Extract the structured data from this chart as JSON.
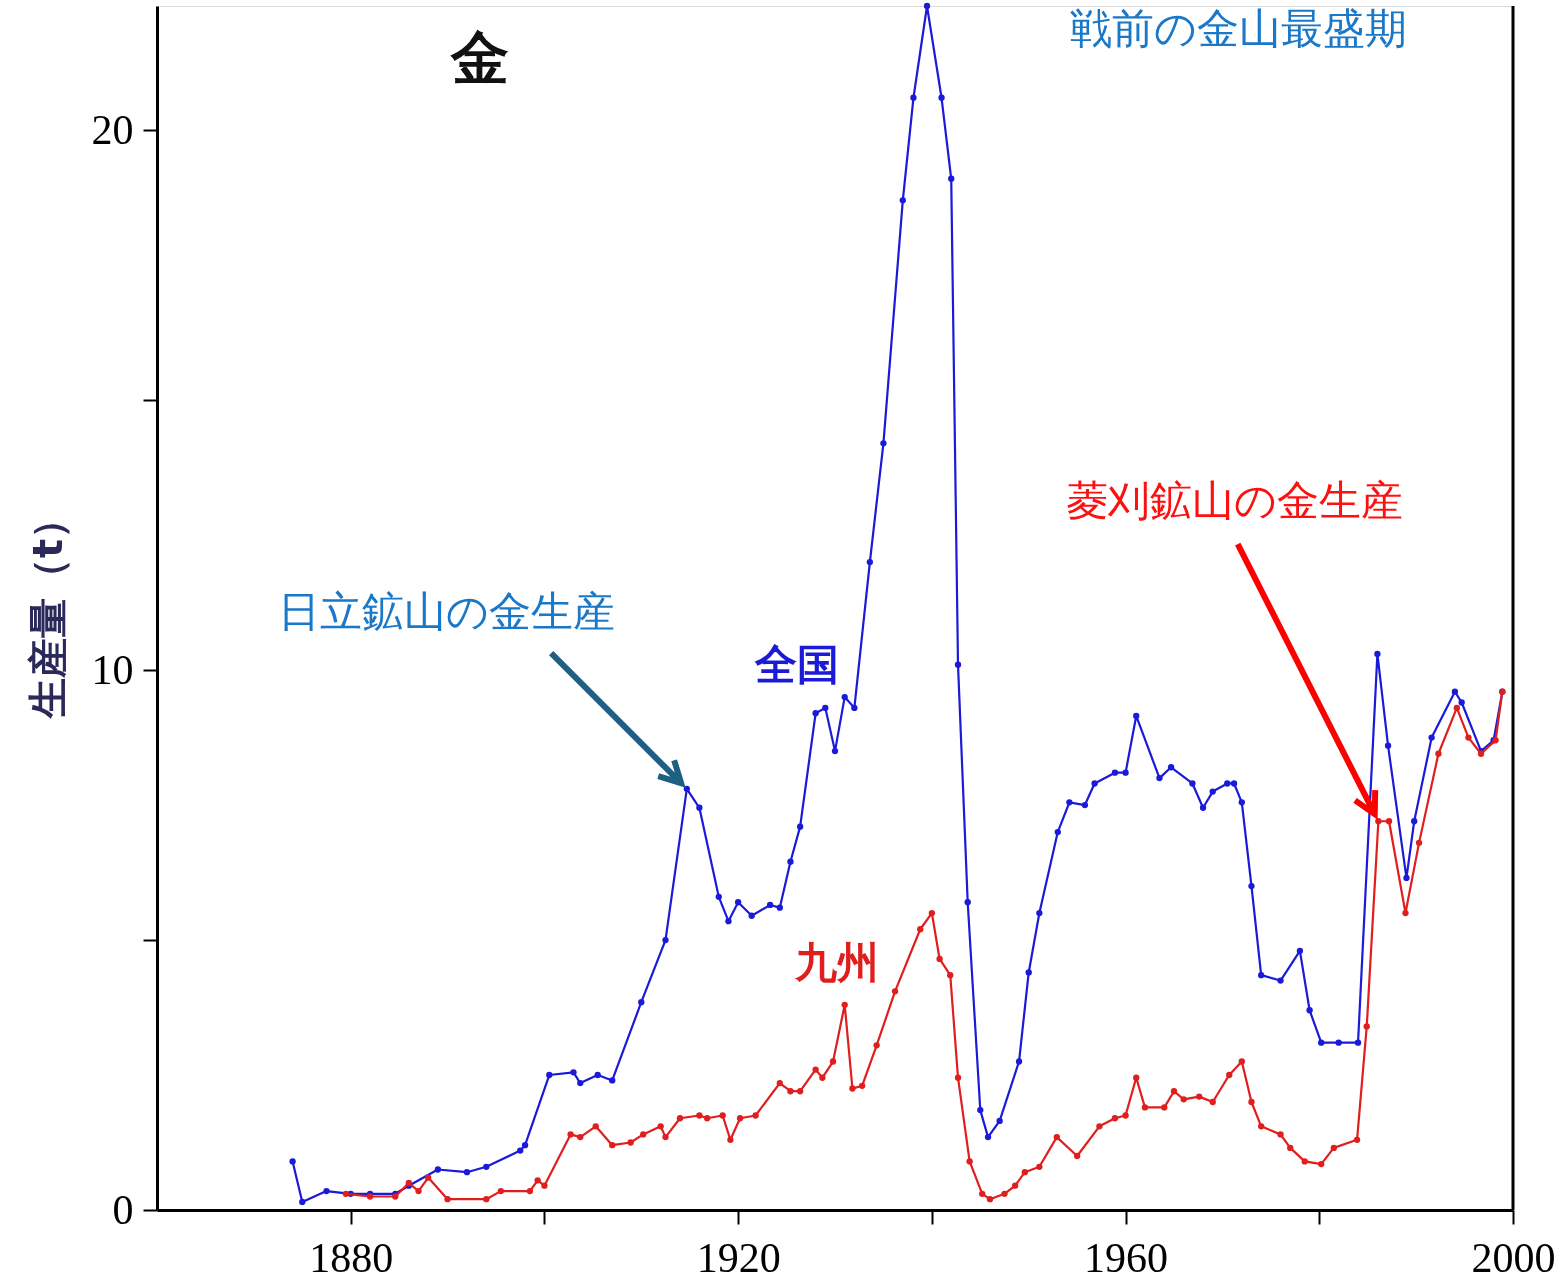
{
  "chart_data": {
    "type": "line",
    "title": "金",
    "ylabel": "生産量（t）",
    "xlim": [
      1860,
      2000
    ],
    "xticks": [
      1880,
      {
        "value": 1900,
        "label": null
      },
      1920,
      {
        "value": 1940,
        "label": null
      },
      1960,
      {
        "value": 1980,
        "label": null
      },
      2000
    ],
    "ylim": [
      0,
      22.3
    ],
    "yticks": [
      0,
      {
        "value": 5,
        "label": null
      },
      10,
      {
        "value": 15,
        "label": null
      },
      20
    ],
    "grid": false,
    "marker": "circle",
    "line_style": "solid",
    "annotations": [
      "戦前の金山最盛期",
      {
        "text": "日立鉱山の金生産",
        "x": 1914.7,
        "y": 7.8
      },
      {
        "text": "菱刈鉱山の金生産",
        "x": 1986.1,
        "y": 7.2
      }
    ],
    "series": [
      {
        "name": "全国",
        "color": "#1a1ad8",
        "x": [
          1874,
          1875,
          1877.5,
          1880,
          1882,
          1884.6,
          1886,
          1889,
          1892,
          1894,
          1897.5,
          1898,
          1900.5,
          1903,
          1903.7,
          1905.5,
          1907,
          1910,
          1912.5,
          1914.7,
          1916,
          1918,
          1919,
          1920,
          1921.4,
          1923.3,
          1924.3,
          1925.4,
          1926.4,
          1928,
          1929,
          1930,
          1931,
          1932,
          1933.6,
          1935,
          1937,
          1938.1,
          1939.5,
          1941,
          1942,
          1942.7,
          1943.7,
          1945,
          1945.8,
          1947,
          1949,
          1950,
          1951.1,
          1953,
          1954.2,
          1955.8,
          1956.8,
          1958.9,
          1960,
          1961.1,
          1963.5,
          1964.7,
          1966.9,
          1968,
          1969,
          1970.5,
          1971.2,
          1972,
          1973,
          1974,
          1976,
          1978,
          1979,
          1980.2,
          1982,
          1984,
          1986,
          1987.1,
          1989,
          1989.8,
          1991.6,
          1994,
          1994.7,
          1996.7,
          1998,
          1998.9
        ],
        "values": [
          0.9,
          0.15,
          0.35,
          0.3,
          0.3,
          0.3,
          0.45,
          0.75,
          0.7,
          0.8,
          1.1,
          1.2,
          2.5,
          2.55,
          2.35,
          2.5,
          2.4,
          3.85,
          5.0,
          7.8,
          7.45,
          5.8,
          5.35,
          5.7,
          5.45,
          5.65,
          5.6,
          6.45,
          7.1,
          9.2,
          9.3,
          8.5,
          9.5,
          9.3,
          12.0,
          14.2,
          18.7,
          20.6,
          22.3,
          20.6,
          19.1,
          10.1,
          5.7,
          1.85,
          1.35,
          1.65,
          2.75,
          4.4,
          5.5,
          7.0,
          7.55,
          7.5,
          7.9,
          8.1,
          8.1,
          9.15,
          8.0,
          8.2,
          7.9,
          7.45,
          7.75,
          7.9,
          7.9,
          7.55,
          6.0,
          4.35,
          4.25,
          4.8,
          3.7,
          3.1,
          3.1,
          3.1,
          10.3,
          8.6,
          6.15,
          7.2,
          8.75,
          9.6,
          9.4,
          8.5,
          8.7,
          9.6
        ]
      },
      {
        "name": "九州",
        "color": "#e01e1e",
        "x": [
          1879.5,
          1882,
          1884.6,
          1886,
          1887,
          1888,
          1890,
          1894,
          1895.5,
          1898.5,
          1899.3,
          1900,
          1902.7,
          1903.7,
          1905.3,
          1907,
          1908.9,
          1910.2,
          1912,
          1912.5,
          1914,
          1916,
          1916.8,
          1918.4,
          1919.2,
          1920.2,
          1921.8,
          1924.3,
          1925.4,
          1926.4,
          1928,
          1928.7,
          1929.8,
          1931,
          1931.8,
          1932.8,
          1934.3,
          1936.2,
          1938.8,
          1940,
          1940.8,
          1941.9,
          1942.7,
          1943.9,
          1945.2,
          1946,
          1947.5,
          1948.6,
          1949.6,
          1951.1,
          1952.9,
          1955,
          1957.3,
          1958.9,
          1960,
          1961.1,
          1962,
          1964,
          1965,
          1966,
          1967.6,
          1969,
          1970.7,
          1972,
          1973,
          1974,
          1976,
          1977,
          1978.5,
          1980.2,
          1981.5,
          1983.9,
          1984.9,
          1986.1,
          1987.2,
          1988.9,
          1990.3,
          1992.3,
          1994.2,
          1995.4,
          1996.7,
          1998.2,
          1998.9
        ],
        "values": [
          0.3,
          0.25,
          0.25,
          0.5,
          0.35,
          0.6,
          0.2,
          0.2,
          0.35,
          0.35,
          0.55,
          0.45,
          1.4,
          1.35,
          1.55,
          1.2,
          1.25,
          1.4,
          1.55,
          1.35,
          1.7,
          1.75,
          1.7,
          1.75,
          1.3,
          1.7,
          1.75,
          2.35,
          2.2,
          2.2,
          2.6,
          2.45,
          2.75,
          3.8,
          2.25,
          2.3,
          3.05,
          4.05,
          5.2,
          5.5,
          4.65,
          4.35,
          2.45,
          0.9,
          0.3,
          0.2,
          0.3,
          0.45,
          0.7,
          0.8,
          1.35,
          1.0,
          1.55,
          1.7,
          1.75,
          2.45,
          1.9,
          1.9,
          2.2,
          2.05,
          2.1,
          2.0,
          2.5,
          2.75,
          2.0,
          1.55,
          1.4,
          1.15,
          0.9,
          0.85,
          1.15,
          1.3,
          3.4,
          7.2,
          7.2,
          5.5,
          6.8,
          8.45,
          9.3,
          8.75,
          8.45,
          8.7,
          9.6
        ]
      }
    ]
  }
}
